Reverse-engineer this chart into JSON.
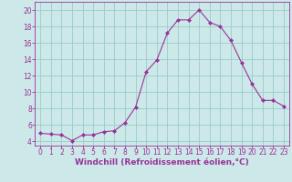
{
  "x": [
    0,
    1,
    2,
    3,
    4,
    5,
    6,
    7,
    8,
    9,
    10,
    11,
    12,
    13,
    14,
    15,
    16,
    17,
    18,
    19,
    20,
    21,
    22,
    23
  ],
  "y": [
    5.0,
    4.9,
    4.8,
    4.1,
    4.8,
    4.8,
    5.2,
    5.3,
    6.3,
    8.2,
    12.5,
    13.9,
    17.2,
    18.8,
    18.8,
    20.0,
    18.5,
    18.0,
    16.3,
    13.6,
    11.0,
    9.0,
    9.0,
    8.3
  ],
  "line_color": "#993399",
  "marker": "D",
  "marker_size": 2,
  "bg_color": "#cce8e8",
  "grid_color": "#99cccc",
  "axis_color": "#993399",
  "xlabel": "Windchill (Refroidissement éolien,°C)",
  "xlabel_color": "#993399",
  "xlim": [
    -0.5,
    23.5
  ],
  "ylim": [
    3.5,
    21.0
  ],
  "yticks": [
    4,
    6,
    8,
    10,
    12,
    14,
    16,
    18,
    20
  ],
  "xticks": [
    0,
    1,
    2,
    3,
    4,
    5,
    6,
    7,
    8,
    9,
    10,
    11,
    12,
    13,
    14,
    15,
    16,
    17,
    18,
    19,
    20,
    21,
    22,
    23
  ],
  "label_fontsize": 6.5,
  "tick_fontsize": 5.5
}
